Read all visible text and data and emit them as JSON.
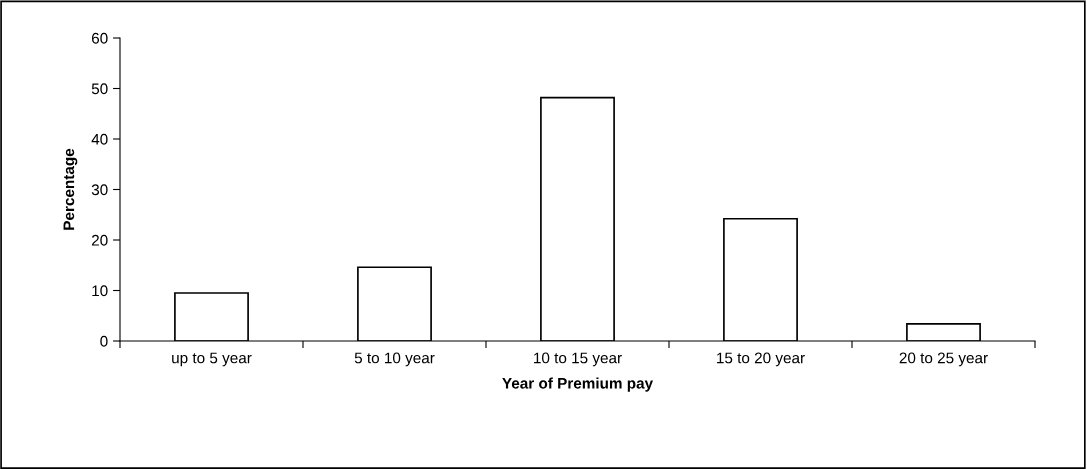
{
  "chart_data": {
    "type": "bar",
    "xlabel": "Year of Premium pay",
    "ylabel": "Percentage",
    "categories": [
      "up to 5 year",
      "5 to 10 year",
      "10 to 15 year",
      "15 to 20 year",
      "20 to 25 year"
    ],
    "values": [
      9.5,
      14.6,
      48.2,
      24.2,
      3.4
    ],
    "color": "#ffffff",
    "ylim": [
      0,
      60
    ],
    "yticks": [
      0,
      10,
      20,
      30,
      40,
      50,
      60
    ],
    "grid": false,
    "legend": false
  }
}
